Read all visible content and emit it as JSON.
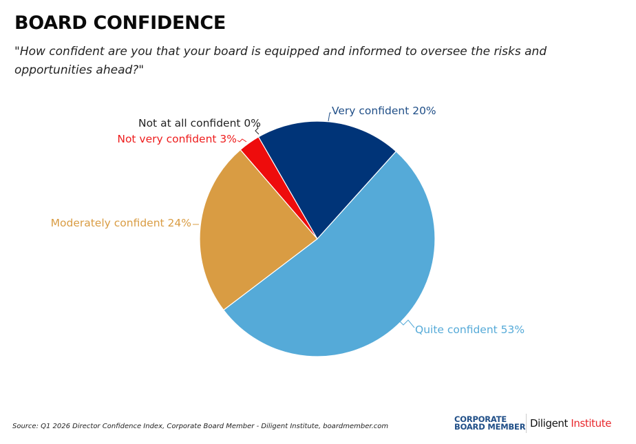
{
  "header": {
    "title": "BOARD CONFIDENCE",
    "question": "\"How confident are you that your board is equipped and informed to oversee the risks and opportunities ahead?\""
  },
  "chart_data": {
    "type": "pie",
    "title": "BOARD CONFIDENCE",
    "subtitle": "\"How confident are you that your board is equipped and informed to oversee the risks and opportunities ahead?\"",
    "start_angle_deg": -30,
    "direction": "clockwise",
    "slices": [
      {
        "label": "Very confident 20%",
        "name": "Very confident",
        "value": 20,
        "color": "#003478",
        "label_color": "#1f4e87"
      },
      {
        "label": "Quite confident 53%",
        "name": "Quite confident",
        "value": 53,
        "color": "#55aad8",
        "label_color": "#55aad8"
      },
      {
        "label": "Moderately confident 24%",
        "name": "Moderately confident",
        "value": 24,
        "color": "#d99c43",
        "label_color": "#d99c43"
      },
      {
        "label": "Not very confident 3%",
        "name": "Not very confident",
        "value": 3,
        "color": "#ee0c0c",
        "label_color": "#ee1c1c"
      },
      {
        "label": "Not at all confident 0%",
        "name": "Not at all confident",
        "value": 0,
        "color": "#222222",
        "label_color": "#222222"
      }
    ]
  },
  "footer": {
    "source": "Source: Q1 2026 Director Confidence Index, Corporate Board Member - Diligent Institute,  boardmember.com",
    "logo_cbm_line1": "CORPORATE",
    "logo_cbm_line2": "BOARD MEMBER",
    "logo_diligent": "Diligent",
    "logo_institute": "Institute"
  }
}
